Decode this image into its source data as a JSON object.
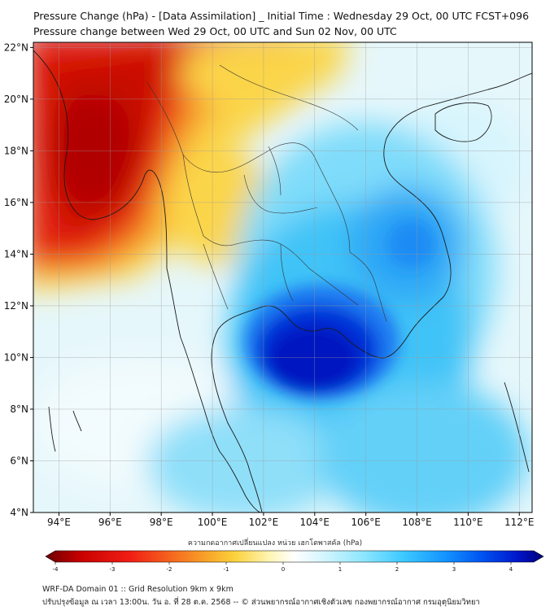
{
  "header": {
    "title": "Pressure Change (hPa) - [Data Assimilation] _ Initial Time : Wednesday 29 Oct, 00 UTC FCST+096",
    "subtitle": "Pressure change between Wed 29 Oct, 00 UTC and Sun 02 Nov, 00 UTC"
  },
  "map": {
    "lat_labels": [
      "22°N",
      "20°N",
      "18°N",
      "16°N",
      "14°N",
      "12°N",
      "10°N",
      "8°N",
      "6°N",
      "4°N"
    ],
    "lon_labels": [
      "94°E",
      "96°E",
      "98°E",
      "100°E",
      "102°E",
      "104°E",
      "106°E",
      "108°E",
      "110°E",
      "112°E"
    ],
    "lat_values": [
      22,
      20,
      18,
      16,
      14,
      12,
      10,
      8,
      6,
      4
    ],
    "lon_values": [
      94,
      96,
      98,
      100,
      102,
      104,
      106,
      108,
      110,
      112
    ],
    "lon_range": [
      93.0,
      112.5
    ],
    "lat_range": [
      4.0,
      22.2
    ],
    "grid": true
  },
  "colorbar": {
    "label": "ความกดอากาศเปลี่ยนแปลง หน่วย เฮกโตพาสคัล (hPa)",
    "ticks": [
      "-4",
      "-3",
      "-2",
      "-1",
      "0",
      "1",
      "2",
      "3",
      "4"
    ],
    "tick_values": [
      -4,
      -3,
      -2,
      -1,
      0,
      1,
      2,
      3,
      4
    ],
    "colors": [
      "#6b0000",
      "#c80000",
      "#f01e14",
      "#f5641e",
      "#f8a028",
      "#fbd23c",
      "#fff5b4",
      "#ffffff",
      "#d2f5ff",
      "#8ce6ff",
      "#3cc8ff",
      "#1496ff",
      "#0050f0",
      "#0014c8",
      "#000078"
    ]
  },
  "footer": {
    "line1": "WRF-DA Domain 01 :: Grid Resolution 9km x 9km",
    "line2": "ปรับปรุงข้อมูล ณ เวลา 13:00น. วัน อ. ที่ 28 ต.ค. 2568 -- © ส่วนพยากรณ์อากาศเชิงตัวเลข กองพยากรณ์อากาศ กรมอุตุนิยมวิทยา"
  }
}
